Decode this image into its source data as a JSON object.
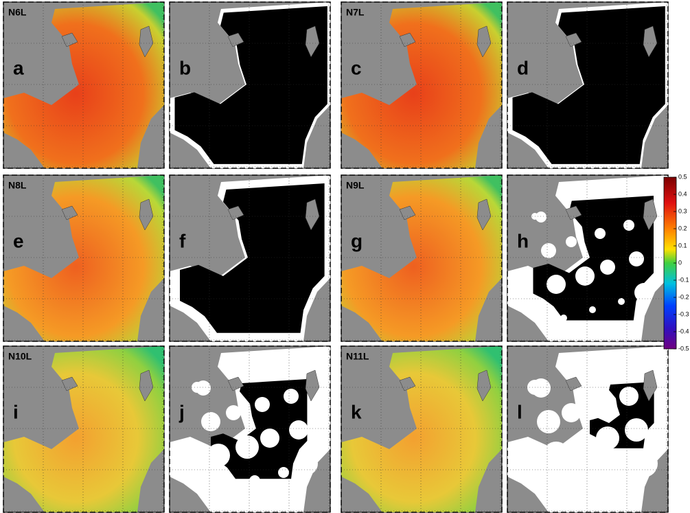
{
  "panels": [
    {
      "label": "N6L",
      "letter": "a"
    },
    {
      "letter": "b"
    },
    {
      "label": "N7L",
      "letter": "c"
    },
    {
      "letter": "d"
    },
    {
      "label": "N8L",
      "letter": "e"
    },
    {
      "letter": "f"
    },
    {
      "label": "N9L",
      "letter": "g"
    },
    {
      "letter": "h"
    },
    {
      "label": "N10L",
      "letter": "i"
    },
    {
      "letter": "j"
    },
    {
      "label": "N11L",
      "letter": "k"
    },
    {
      "letter": "l"
    }
  ],
  "colorbar": {
    "lim": [
      -0.5,
      0.5
    ],
    "ticks": [
      0.5,
      0.4,
      0.3,
      0.2,
      0.1,
      0,
      -0.1,
      -0.2,
      -0.3,
      -0.4,
      -0.5
    ]
  }
}
